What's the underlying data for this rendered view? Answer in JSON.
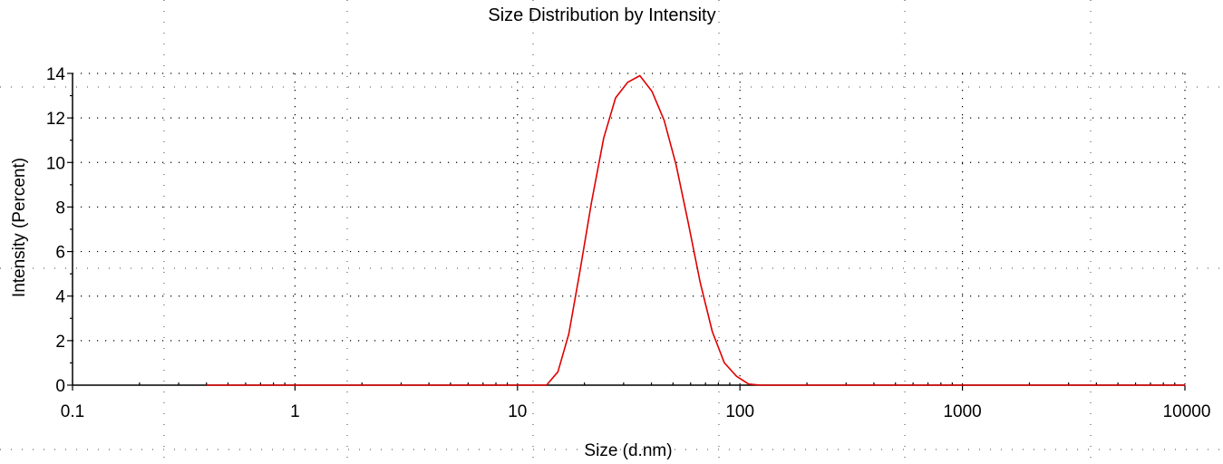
{
  "chart_data": {
    "type": "line",
    "title": "Size Distribution by Intensity",
    "xlabel": "Size (d.nm)",
    "ylabel": "Intensity (Percent)",
    "x_scale": "log",
    "xlim": [
      0.1,
      10000
    ],
    "ylim": [
      0,
      14
    ],
    "x_ticks": [
      0.1,
      1,
      10,
      100,
      1000,
      10000
    ],
    "x_tick_labels": [
      "0.1",
      "1",
      "10",
      "100",
      "1000",
      "10000"
    ],
    "y_ticks": [
      0,
      2,
      4,
      6,
      8,
      10,
      12,
      14
    ],
    "y_tick_labels": [
      "0",
      "2",
      "4",
      "6",
      "8",
      "10",
      "12",
      "14"
    ],
    "grid": true,
    "legend": "none",
    "series_color": "#e00000",
    "series": [
      {
        "x": [
          0.4,
          13.5,
          15.2,
          17,
          19,
          21.5,
          24.4,
          27.6,
          31.3,
          35.5,
          40.2,
          45.6,
          51.6,
          58.5,
          66.3,
          75.1,
          85.1,
          96.5,
          109.4,
          124,
          140,
          10000
        ],
        "y": [
          0,
          0,
          0.6,
          2.3,
          5.0,
          8.2,
          11.1,
          12.9,
          13.6,
          13.9,
          13.2,
          11.9,
          9.9,
          7.3,
          4.6,
          2.4,
          1.0,
          0.4,
          0.05,
          0,
          0,
          0
        ]
      }
    ]
  }
}
